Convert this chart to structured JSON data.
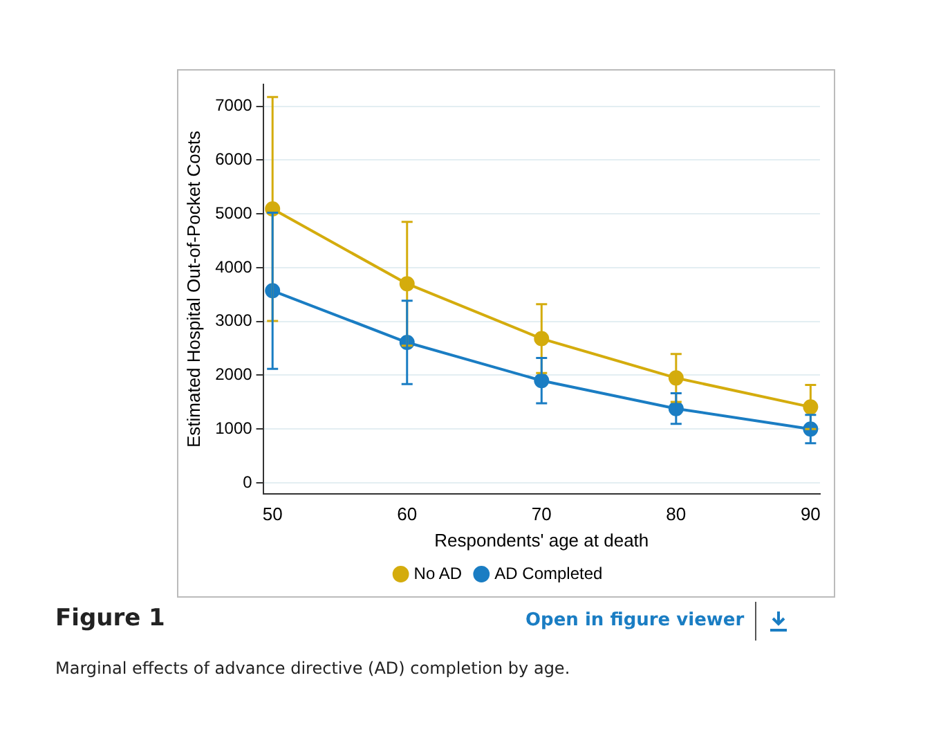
{
  "chart_data": {
    "type": "line",
    "xlabel": "Respondents' age at death",
    "ylabel": "Estimated Hospital Out-of-Pocket Costs",
    "x": [
      50,
      60,
      70,
      80,
      90
    ],
    "series": [
      {
        "name": "No AD",
        "color": "#d4ac0d",
        "values": [
          5090,
          3700,
          2680,
          1950,
          1410
        ],
        "errors": [
          2080,
          1150,
          640,
          445,
          410
        ]
      },
      {
        "name": "AD Completed",
        "color": "#1a7dc3",
        "values": [
          3570,
          2610,
          1900,
          1380,
          1000
        ],
        "errors": [
          1450,
          775,
          420,
          285,
          265
        ]
      }
    ],
    "xlim": [
      49.3,
      90.7
    ],
    "xticks": [
      50,
      60,
      70,
      80,
      90
    ],
    "ylim": [
      -200,
      7400
    ],
    "yticks": [
      0,
      1000,
      2000,
      3000,
      4000,
      5000,
      6000,
      7000
    ],
    "grid": "y",
    "legend": "bottom",
    "marker": "circle",
    "line_style": "solid",
    "annotations": [
      "Figure 1",
      "Open in figure viewer",
      "Marginal effects of advance directive (AD) completion by age."
    ]
  }
}
